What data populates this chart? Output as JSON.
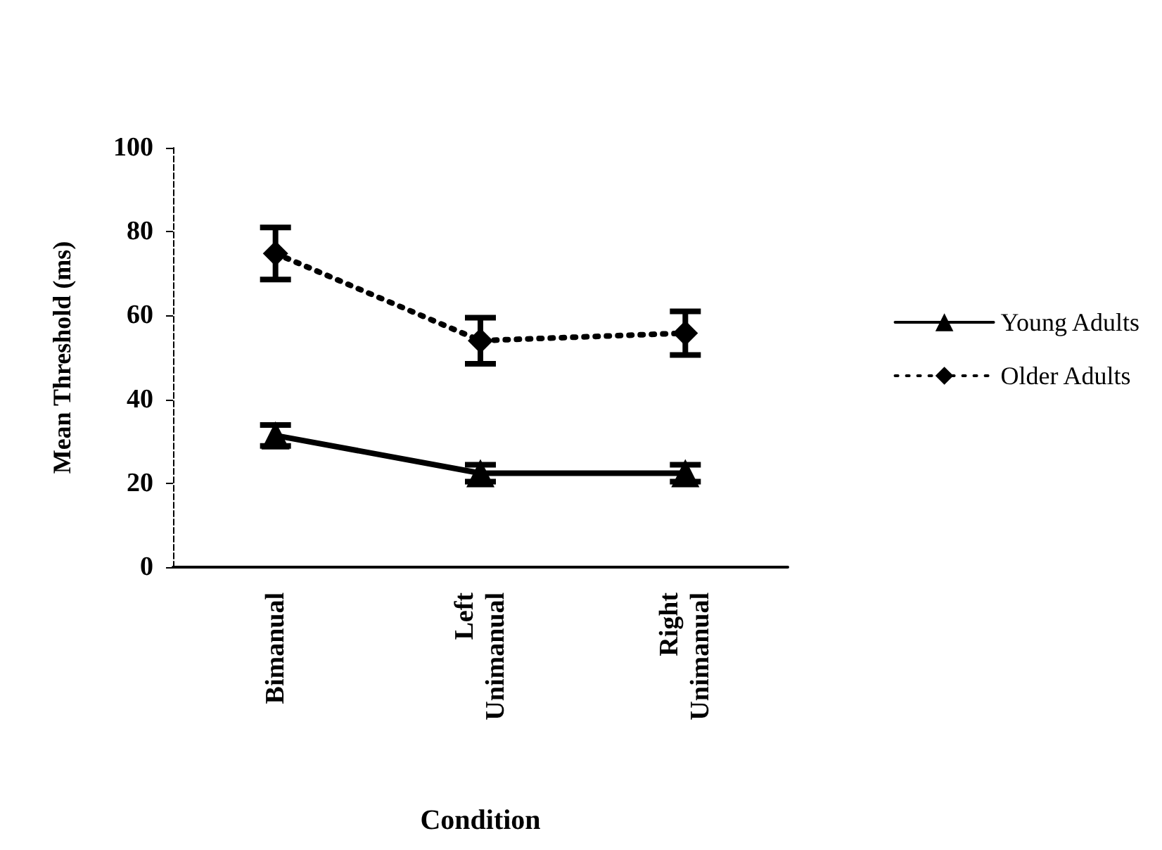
{
  "chart_data": {
    "type": "line",
    "xlabel": "Condition",
    "ylabel": "Mean Threshold (ms)",
    "categories": [
      "Bimanual",
      "Left Unimanual",
      "Right Unimanual"
    ],
    "series": [
      {
        "name": "Young Adults",
        "color": "#000000",
        "values": [
          31.4,
          22.4,
          22.4
        ],
        "errors": [
          2.5,
          2,
          2
        ],
        "marker": "triangle",
        "line_style": "solid"
      },
      {
        "name": "Older Adults",
        "color": "#000000",
        "values": [
          74.8,
          54,
          55.8
        ],
        "errors": [
          6.2,
          5.5,
          5.2
        ],
        "marker": "diamond",
        "line_style": "dotted"
      }
    ],
    "ylim": [
      0,
      100
    ],
    "yticks": [
      0,
      20,
      40,
      60,
      80,
      100
    ],
    "grid": false,
    "legend": "right"
  }
}
